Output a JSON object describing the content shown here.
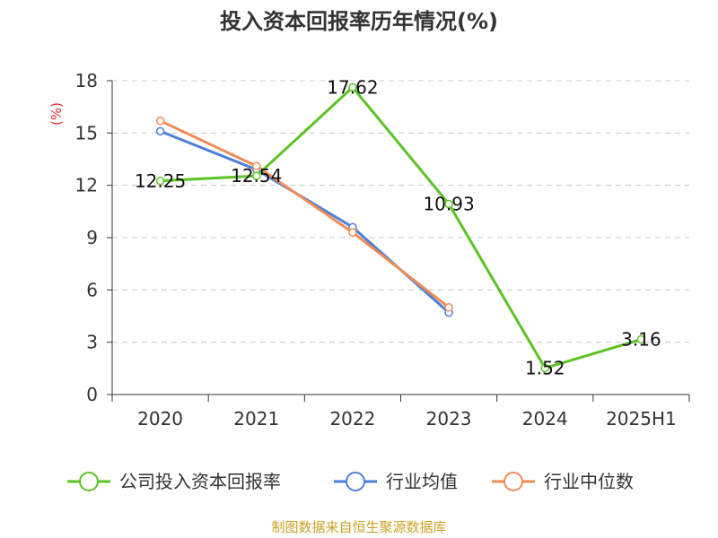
{
  "source_note": "制图数据来自恒生聚源数据库",
  "colors": {
    "company": "#5bc324",
    "industry_avg": "#4e7fd8",
    "industry_median": "#f08c55",
    "source": "#c9a227",
    "unit": "#e0262a"
  },
  "chart_data": {
    "type": "line",
    "title": "投入资本回报率历年情况(%)",
    "ylabel": "(%)",
    "xlabel": "",
    "categories": [
      "2020",
      "2021",
      "2022",
      "2023",
      "2024",
      "2025H1"
    ],
    "ylim": [
      0,
      18
    ],
    "yticks": [
      0,
      3,
      6,
      9,
      12,
      15,
      18
    ],
    "grid": true,
    "legend_position": "bottom",
    "series": [
      {
        "name": "公司投入资本回报率",
        "color_key": "company",
        "show_labels": true,
        "values": [
          12.25,
          12.54,
          17.62,
          10.93,
          1.52,
          3.16
        ],
        "labels": [
          "12.25",
          "12.54",
          "17.62",
          "10.93",
          "1.52",
          "3.16"
        ]
      },
      {
        "name": "行业均值",
        "color_key": "industry_avg",
        "show_labels": false,
        "values": [
          15.1,
          12.9,
          9.6,
          4.7,
          null,
          null
        ]
      },
      {
        "name": "行业中位数",
        "color_key": "industry_median",
        "show_labels": false,
        "values": [
          15.7,
          13.1,
          9.3,
          5.0,
          null,
          null
        ]
      }
    ]
  }
}
